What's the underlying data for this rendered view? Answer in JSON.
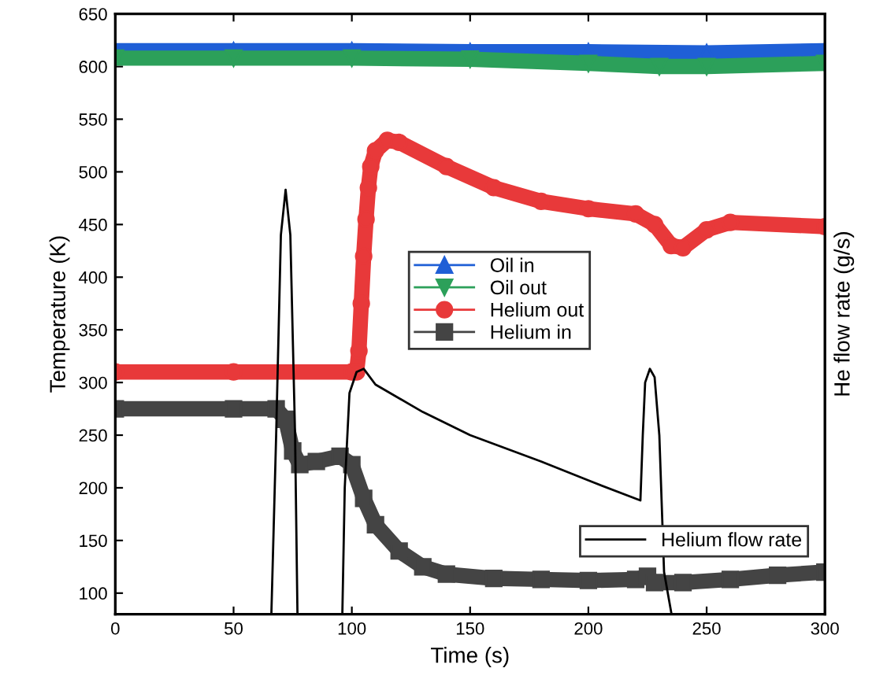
{
  "chart_data": {
    "type": "line",
    "xlabel": "Time (s)",
    "ylabel": "Temperature (K)",
    "y2label": "He flow rate (g/s)",
    "xlim": [
      0,
      300
    ],
    "xticks": [
      0,
      50,
      100,
      150,
      200,
      250,
      300
    ],
    "ylim": [
      80,
      650
    ],
    "yticks": [
      100,
      150,
      200,
      250,
      300,
      350,
      400,
      450,
      500,
      550,
      600,
      650
    ],
    "grid": false,
    "legend": "center",
    "series": [
      {
        "name": "Oil in",
        "color": "#1f5fd6",
        "marker": "triangle",
        "x": [
          0,
          50,
          100,
          150,
          200,
          250,
          300
        ],
        "values": [
          615,
          615,
          615,
          614,
          614,
          613,
          615
        ]
      },
      {
        "name": "Oil out",
        "color": "#2ca05a",
        "marker": "triangle_down",
        "x": [
          0,
          50,
          100,
          150,
          200,
          230,
          250,
          300
        ],
        "values": [
          608,
          608,
          608,
          607,
          603,
          600,
          600,
          603
        ]
      },
      {
        "name": "Helium out",
        "color": "#e8393a",
        "marker": "circle",
        "x": [
          0,
          50,
          100,
          102,
          103,
          104,
          105,
          106,
          107,
          108,
          110,
          115,
          120,
          140,
          160,
          180,
          200,
          220,
          228,
          235,
          240,
          250,
          260,
          300
        ],
        "values": [
          310,
          310,
          310,
          310,
          330,
          375,
          420,
          455,
          485,
          505,
          520,
          530,
          528,
          505,
          485,
          472,
          465,
          460,
          450,
          430,
          428,
          445,
          452,
          448
        ]
      },
      {
        "name": "Helium in",
        "color": "#444444",
        "marker": "square",
        "x": [
          0,
          50,
          68,
          72,
          75,
          78,
          85,
          95,
          100,
          105,
          110,
          120,
          130,
          140,
          160,
          180,
          200,
          220,
          225,
          228,
          240,
          260,
          280,
          300
        ],
        "values": [
          275,
          275,
          275,
          265,
          235,
          222,
          225,
          230,
          222,
          190,
          165,
          140,
          125,
          118,
          114,
          113,
          112,
          113,
          116,
          110,
          110,
          113,
          117,
          120
        ]
      },
      {
        "name": "Helium flow rate",
        "color": "#000000",
        "marker": "none",
        "x": [
          66,
          68,
          70,
          72,
          74,
          76,
          77,
          86,
          96,
          97,
          99,
          102,
          105,
          110,
          130,
          150,
          180,
          200,
          222,
          223,
          224,
          226,
          228,
          230,
          232,
          235
        ],
        "values": [
          82,
          250,
          440,
          483,
          440,
          250,
          82,
          null,
          82,
          200,
          290,
          310,
          313,
          298,
          272,
          250,
          225,
          207,
          188,
          250,
          300,
          313,
          305,
          250,
          120,
          82
        ]
      }
    ]
  }
}
